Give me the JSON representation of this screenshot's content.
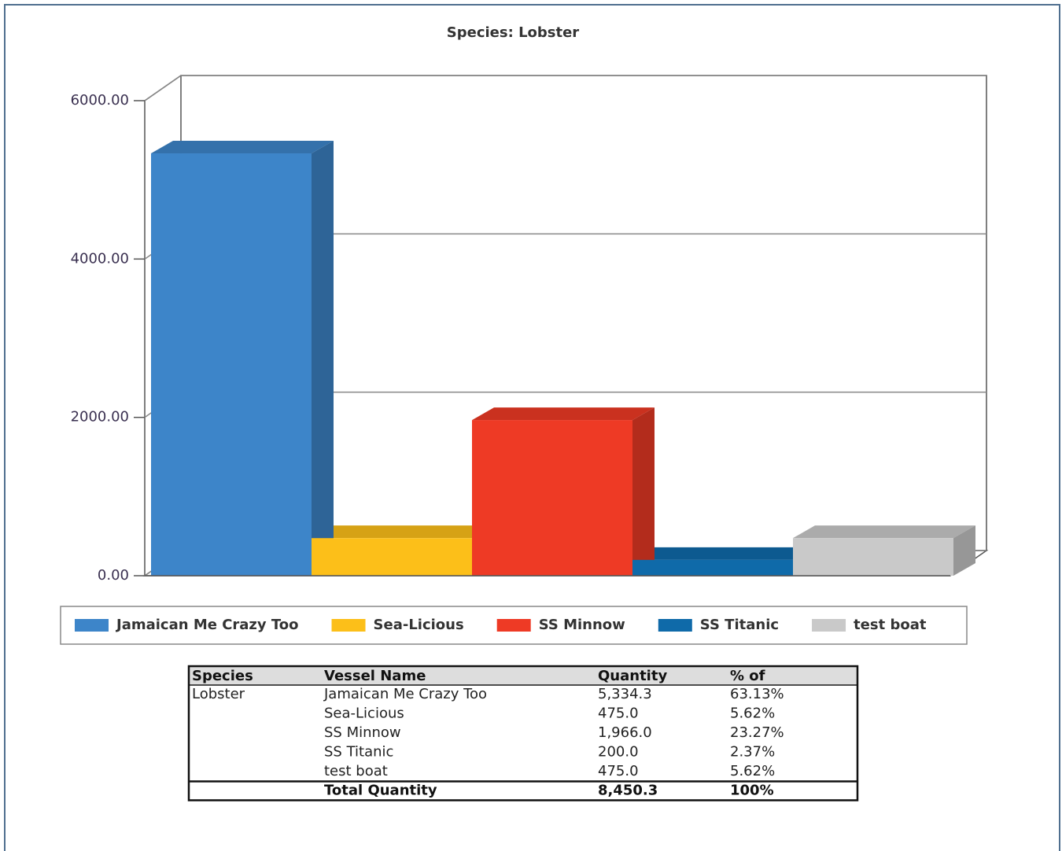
{
  "chart_data": {
    "type": "bar3d",
    "title": "Species: Lobster",
    "series": [
      {
        "name": "Jamaican Me Crazy Too",
        "color": "#3d85c9",
        "values": [
          5334.3
        ]
      },
      {
        "name": "Sea-Licious",
        "color": "#fcbf19",
        "values": [
          475
        ]
      },
      {
        "name": "SS Minnow",
        "color": "#ee3a25",
        "values": [
          1966
        ]
      },
      {
        "name": "SS Titanic",
        "color": "#0f6aa9",
        "values": [
          200
        ]
      },
      {
        "name": "test boat",
        "color": "#c9c9c9",
        "values": [
          475
        ]
      }
    ],
    "ylim": [
      0,
      6000
    ],
    "yticks": [
      {
        "value": 0,
        "label": "0.00"
      },
      {
        "value": 2000,
        "label": "2000.00"
      },
      {
        "value": 4000,
        "label": "4000.00"
      },
      {
        "value": 6000,
        "label": "6000.00"
      }
    ],
    "grid": true,
    "legend": "bottom"
  },
  "table": {
    "header": [
      "Species",
      "Vessel Name",
      "Quantity",
      "% of"
    ],
    "species": "Lobster",
    "rows": [
      [
        "Jamaican Me Crazy Too",
        "5,334.3",
        "63.13%"
      ],
      [
        "Sea-Licious",
        "475.0",
        "5.62%"
      ],
      [
        "SS Minnow",
        "1,966.0",
        "23.27%"
      ],
      [
        "SS Titanic",
        "200.0",
        "2.37%"
      ],
      [
        "test boat",
        "475.0",
        "5.62%"
      ]
    ],
    "total": [
      "Total Quantity",
      "8,450.3",
      "100%"
    ]
  }
}
